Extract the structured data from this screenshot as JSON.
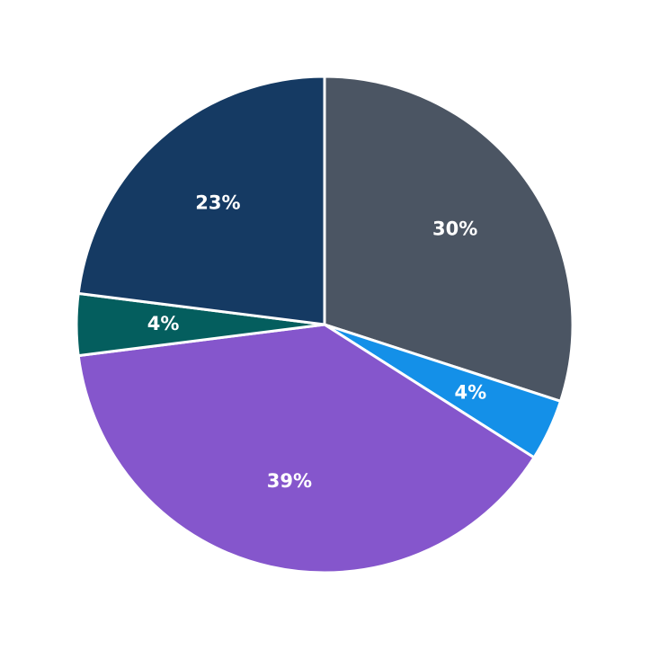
{
  "chart_data": {
    "type": "pie",
    "values": [
      30,
      4,
      39,
      4,
      23
    ],
    "value_labels": [
      "30%",
      "4%",
      "39%",
      "4%",
      "23%"
    ],
    "colors": [
      "#4b5563",
      "#1490e8",
      "#8556cc",
      "#045e5e",
      "#153a63"
    ]
  }
}
